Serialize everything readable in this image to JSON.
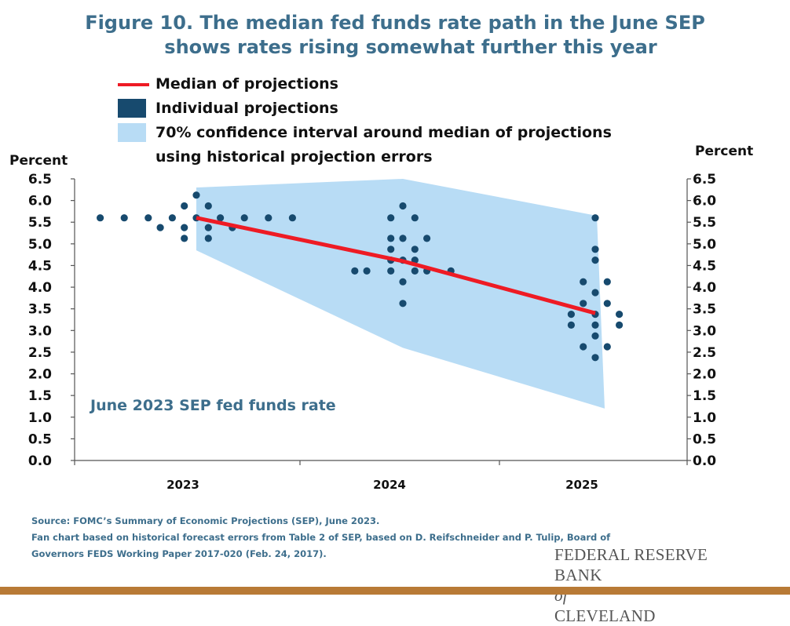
{
  "title_line1": "Figure 10. The median fed funds rate path in the June SEP",
  "title_line2": "shows rates rising somewhat further this year",
  "colors": {
    "median": "#ee1b24",
    "dots": "#174a6e",
    "band": "#b8dcf5",
    "title": "#3d6e8c",
    "bottom_bar": "#b87a36"
  },
  "source_line1": "Source: FOMC’s Summary of Economic Projections (SEP), June 2023.",
  "source_line2": "Fan chart based on historical forecast errors from Table 2 of SEP, based on D. Reifschneider and P. Tulip, Board of",
  "source_line3": "Governors FEDS Working Paper 2017-020 (Feb. 24, 2017).",
  "logo_line1": "FEDERAL RESERVE BANK",
  "logo_of": "of",
  "logo_line2": "CLEVELAND",
  "chart_data": {
    "type": "scatter",
    "annotation": "June 2023 SEP fed funds rate",
    "ylabel_left": "Percent",
    "ylabel_right": "Percent",
    "ylim": [
      0,
      6.5
    ],
    "y_ticks": [
      "0.0",
      "0.5",
      "1.0",
      "1.5",
      "2.0",
      "2.5",
      "3.0",
      "3.5",
      "4.0",
      "4.5",
      "5.0",
      "5.5",
      "6.0",
      "6.5"
    ],
    "categories": [
      "2023",
      "2024",
      "2025"
    ],
    "grid": false,
    "legend": {
      "placement": "top-left",
      "median": "Median of projections",
      "individual": "Individual projections",
      "band_line1": "70% confidence interval around median of projections",
      "band_line2": "using historical projection errors"
    },
    "median": [
      {
        "year": 2023,
        "value": 5.6
      },
      {
        "year": 2024,
        "value": 4.6
      },
      {
        "year": 2025,
        "value": 3.4
      }
    ],
    "confidence_band": [
      {
        "year": 2023,
        "lower": 4.85,
        "upper": 6.3
      },
      {
        "year": 2024,
        "lower": 2.6,
        "upper": 6.5
      },
      {
        "year": 2025,
        "lower": 1.2,
        "upper": 5.65
      }
    ],
    "individual_projections": {
      "2023": [
        5.6,
        5.6,
        5.6,
        5.375,
        5.6,
        5.875,
        5.375,
        5.125,
        6.125,
        5.6,
        5.875,
        5.375,
        5.125,
        5.6,
        5.375,
        5.6,
        5.6,
        5.6
      ],
      "2024": [
        4.375,
        4.375,
        5.125,
        5.6,
        4.875,
        4.625,
        4.375,
        5.875,
        5.125,
        4.625,
        4.125,
        3.625,
        5.6,
        4.875,
        4.625,
        4.375,
        5.125,
        4.375,
        4.375
      ],
      "2025": [
        3.375,
        3.125,
        4.125,
        3.625,
        2.625,
        5.6,
        4.875,
        4.625,
        3.875,
        3.375,
        3.125,
        2.875,
        2.375,
        4.125,
        3.625,
        2.625,
        3.375,
        3.125
      ]
    }
  }
}
